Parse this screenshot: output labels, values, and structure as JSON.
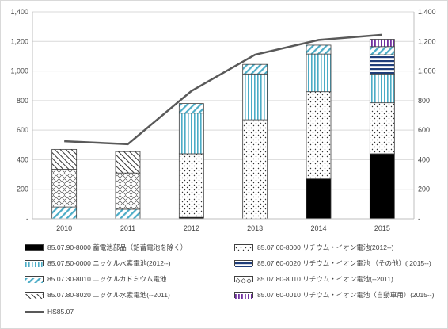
{
  "chart_data": {
    "type": "bar",
    "categories": [
      "2010",
      "2011",
      "2012",
      "2013",
      "2014",
      "2015"
    ],
    "ylim": [
      0,
      1400
    ],
    "yticks": [
      "-",
      "200",
      "400",
      "600",
      "800",
      "1,000",
      "1,200",
      "1,400"
    ],
    "ytick_values": [
      0,
      200,
      400,
      600,
      800,
      1000,
      1200,
      1400
    ],
    "grid": true,
    "legend_position": "bottom",
    "series": [
      {
        "name": "85.07.90-8000 蓄電池部品（鉛蓄電池を除く）",
        "key": "solid",
        "values": [
          0,
          0,
          10,
          0,
          270,
          440
        ]
      },
      {
        "name": "85.07.60-8000 リチウム・イオン電池(2012--)",
        "key": "dots",
        "values": [
          0,
          0,
          430,
          670,
          590,
          345
        ]
      },
      {
        "name": "85.07.50-0000 ニッケル水素電池(2012--)",
        "key": "vlines",
        "values": [
          0,
          0,
          275,
          310,
          255,
          195
        ]
      },
      {
        "name": "85.07.60-0020 リチウム・イオン電池 （その他）( 2015--)",
        "key": "hlines",
        "values": [
          0,
          0,
          0,
          0,
          0,
          130
        ]
      },
      {
        "name": "85.07.30-8010 ニッケルカドミウム電池",
        "key": "ddiag",
        "values": [
          80,
          65,
          65,
          65,
          60,
          55
        ]
      },
      {
        "name": "85.07.80-8010 リチウム・イオン電池(--2011)",
        "key": "diamonds",
        "values": [
          255,
          245,
          0,
          0,
          0,
          0
        ]
      },
      {
        "name": "85.07.80-8020 ニッケル水素電池(--2011)",
        "key": "udiag",
        "values": [
          135,
          145,
          0,
          0,
          0,
          0
        ]
      },
      {
        "name": "85.07.60-0010 リチウム・イオン電池（自動車用）(2015--)",
        "key": "purple",
        "values": [
          0,
          0,
          0,
          0,
          0,
          50
        ]
      }
    ],
    "line": {
      "name": "HS85.07",
      "values": [
        525,
        505,
        865,
        1110,
        1210,
        1245
      ]
    }
  },
  "colors": {
    "solid": "#000000",
    "teal": "#4bacc6",
    "blue": "#1f3d7a",
    "purple": "#7030a0",
    "line": "#595959",
    "grid": "#d9d9d9"
  }
}
